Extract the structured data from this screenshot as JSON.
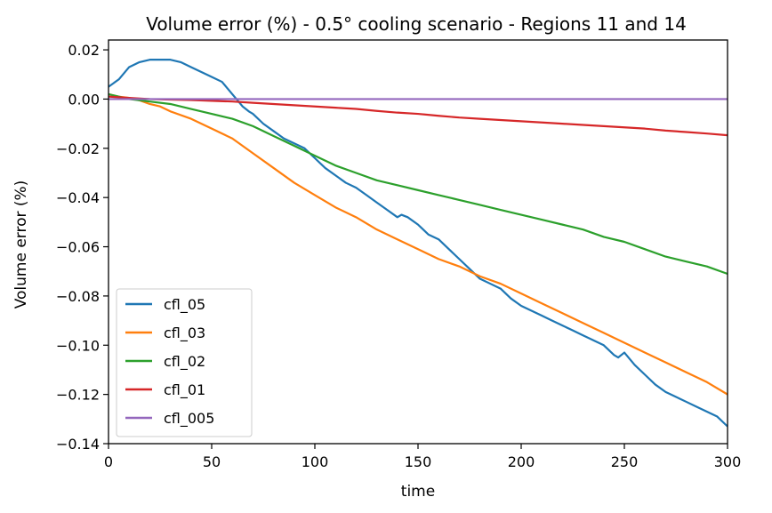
{
  "chart_data": {
    "type": "line",
    "title": "Volume error (%) - 0.5° cooling scenario - Regions 11 and 14",
    "xlabel": "time",
    "ylabel": "Volume error (%)",
    "xlim": [
      0,
      300
    ],
    "ylim": [
      -0.14,
      0.024
    ],
    "x_ticks": [
      0,
      50,
      100,
      150,
      200,
      250,
      300
    ],
    "x_tick_labels": [
      "0",
      "50",
      "100",
      "150",
      "200",
      "250",
      "300"
    ],
    "y_ticks": [
      0.02,
      0.0,
      -0.02,
      -0.04,
      -0.06,
      -0.08,
      -0.1,
      -0.12,
      -0.14
    ],
    "y_tick_labels": [
      "0.02",
      "0.00",
      "−0.02",
      "−0.04",
      "−0.06",
      "−0.08",
      "−0.10",
      "−0.12",
      "−0.14"
    ],
    "grid": false,
    "legend_position": "lower-left",
    "series": [
      {
        "name": "cfl_05",
        "color": "#1f77b4",
        "x": [
          0,
          5,
          10,
          15,
          20,
          25,
          30,
          35,
          40,
          45,
          50,
          55,
          60,
          63,
          65,
          68,
          70,
          75,
          80,
          85,
          90,
          95,
          100,
          105,
          110,
          115,
          120,
          125,
          130,
          135,
          140,
          142,
          145,
          150,
          155,
          160,
          165,
          170,
          175,
          180,
          185,
          190,
          195,
          200,
          205,
          210,
          215,
          220,
          225,
          230,
          235,
          240,
          245,
          247,
          250,
          255,
          260,
          265,
          270,
          275,
          280,
          285,
          290,
          295,
          300
        ],
        "y": [
          0.005,
          0.008,
          0.013,
          0.015,
          0.016,
          0.016,
          0.016,
          0.015,
          0.013,
          0.011,
          0.009,
          0.007,
          0.002,
          -0.001,
          -0.003,
          -0.005,
          -0.006,
          -0.01,
          -0.013,
          -0.016,
          -0.018,
          -0.02,
          -0.024,
          -0.028,
          -0.031,
          -0.034,
          -0.036,
          -0.039,
          -0.042,
          -0.045,
          -0.048,
          -0.047,
          -0.048,
          -0.051,
          -0.055,
          -0.057,
          -0.061,
          -0.065,
          -0.069,
          -0.073,
          -0.075,
          -0.077,
          -0.081,
          -0.084,
          -0.086,
          -0.088,
          -0.09,
          -0.092,
          -0.094,
          -0.096,
          -0.098,
          -0.1,
          -0.104,
          -0.105,
          -0.103,
          -0.108,
          -0.112,
          -0.116,
          -0.119,
          -0.121,
          -0.123,
          -0.125,
          -0.127,
          -0.129,
          -0.133
        ]
      },
      {
        "name": "cfl_03",
        "color": "#ff7f0e",
        "x": [
          0,
          5,
          10,
          15,
          20,
          25,
          30,
          40,
          50,
          60,
          70,
          80,
          90,
          100,
          110,
          120,
          130,
          140,
          150,
          160,
          170,
          180,
          190,
          200,
          210,
          220,
          230,
          240,
          250,
          260,
          270,
          280,
          290,
          300
        ],
        "y": [
          0.002,
          0.001,
          0.0005,
          -0.0005,
          -0.002,
          -0.003,
          -0.005,
          -0.008,
          -0.012,
          -0.016,
          -0.022,
          -0.028,
          -0.034,
          -0.039,
          -0.044,
          -0.048,
          -0.053,
          -0.057,
          -0.061,
          -0.065,
          -0.068,
          -0.072,
          -0.075,
          -0.079,
          -0.083,
          -0.087,
          -0.091,
          -0.095,
          -0.099,
          -0.103,
          -0.107,
          -0.111,
          -0.115,
          -0.12
        ]
      },
      {
        "name": "cfl_02",
        "color": "#2ca02c",
        "x": [
          0,
          5,
          10,
          20,
          30,
          40,
          50,
          60,
          70,
          80,
          90,
          100,
          110,
          120,
          130,
          140,
          150,
          160,
          170,
          180,
          190,
          200,
          210,
          220,
          230,
          240,
          250,
          260,
          270,
          280,
          290,
          300
        ],
        "y": [
          0.002,
          0.001,
          0.0,
          -0.001,
          -0.002,
          -0.004,
          -0.006,
          -0.008,
          -0.011,
          -0.015,
          -0.019,
          -0.023,
          -0.027,
          -0.03,
          -0.033,
          -0.035,
          -0.037,
          -0.039,
          -0.041,
          -0.043,
          -0.045,
          -0.047,
          -0.049,
          -0.051,
          -0.053,
          -0.056,
          -0.058,
          -0.061,
          -0.064,
          -0.066,
          -0.068,
          -0.071
        ]
      },
      {
        "name": "cfl_01",
        "color": "#d62728",
        "x": [
          0,
          10,
          20,
          30,
          40,
          50,
          60,
          70,
          80,
          90,
          100,
          110,
          120,
          130,
          140,
          150,
          160,
          170,
          180,
          190,
          200,
          210,
          220,
          230,
          240,
          250,
          260,
          270,
          280,
          290,
          300
        ],
        "y": [
          0.001,
          0.0005,
          0.0,
          -0.0002,
          -0.0004,
          -0.0007,
          -0.001,
          -0.0015,
          -0.002,
          -0.0025,
          -0.003,
          -0.0035,
          -0.004,
          -0.0048,
          -0.0055,
          -0.006,
          -0.0068,
          -0.0075,
          -0.008,
          -0.0085,
          -0.009,
          -0.0095,
          -0.01,
          -0.0105,
          -0.011,
          -0.0115,
          -0.012,
          -0.0128,
          -0.0134,
          -0.014,
          -0.0147
        ]
      },
      {
        "name": "cfl_005",
        "color": "#9467bd",
        "x": [
          0,
          300
        ],
        "y": [
          0.0,
          0.0
        ]
      }
    ]
  }
}
